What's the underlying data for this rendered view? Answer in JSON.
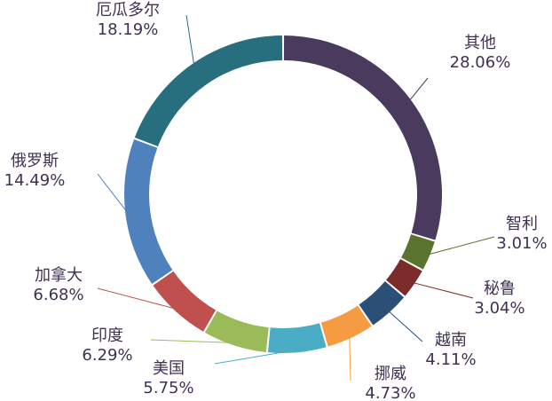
{
  "chart_data": {
    "type": "pie",
    "variant": "doughnut",
    "title": "",
    "legend": "none",
    "label_color": "#403152",
    "series": [
      {
        "slices": [
          {
            "label": "其他",
            "percent_text": "28.06%",
            "value": 28.06,
            "color": "#4A3A5E"
          },
          {
            "label": "智利",
            "percent_text": "3.01%",
            "value": 3.01,
            "color": "#5A7430"
          },
          {
            "label": "秘鲁",
            "percent_text": "3.04%",
            "value": 3.04,
            "color": "#7B2C2A"
          },
          {
            "label": "越南",
            "percent_text": "4.11%",
            "value": 4.11,
            "color": "#2C4F78"
          },
          {
            "label": "挪威",
            "percent_text": "4.73%",
            "value": 4.73,
            "color": "#F59B42"
          },
          {
            "label": "美国",
            "percent_text": "5.75%",
            "value": 5.75,
            "color": "#4BACC6"
          },
          {
            "label": "印度",
            "percent_text": "6.29%",
            "value": 6.29,
            "color": "#9BBB59"
          },
          {
            "label": "加拿大",
            "percent_text": "6.68%",
            "value": 6.68,
            "color": "#C0504D"
          },
          {
            "label": "俄罗斯",
            "percent_text": "14.49%",
            "value": 14.49,
            "color": "#4F81BD"
          },
          {
            "label": "厄瓜多尔",
            "percent_text": "18.19%",
            "value": 18.19,
            "color": "#276F7F"
          }
        ]
      }
    ]
  }
}
